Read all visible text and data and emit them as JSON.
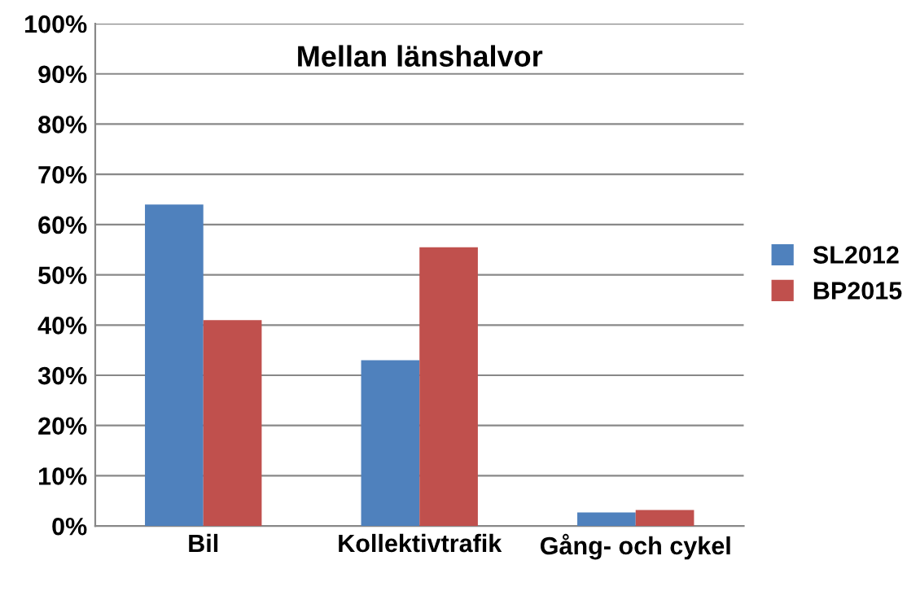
{
  "chart_data": {
    "type": "bar",
    "title": "Mellan länshalvor",
    "categories": [
      "Bil",
      "Kollektivtrafik",
      "Gång- och cykel"
    ],
    "series": [
      {
        "name": "SL2012",
        "color": "#4f81bd",
        "values": [
          0.64,
          0.33,
          0.027
        ]
      },
      {
        "name": "BP2015",
        "color": "#c0504d",
        "values": [
          0.41,
          0.555,
          0.032
        ]
      }
    ],
    "ylim": [
      0,
      1
    ],
    "yticks": [
      {
        "value": 0,
        "label": "0%"
      },
      {
        "value": 0.1,
        "label": "10%"
      },
      {
        "value": 0.2,
        "label": "20%"
      },
      {
        "value": 0.3,
        "label": "30%"
      },
      {
        "value": 0.4,
        "label": "40%"
      },
      {
        "value": 0.5,
        "label": "50%"
      },
      {
        "value": 0.6,
        "label": "60%"
      },
      {
        "value": 0.7,
        "label": "70%"
      },
      {
        "value": 0.8,
        "label": "80%"
      },
      {
        "value": 0.9,
        "label": "90%"
      },
      {
        "value": 1,
        "label": "100%"
      }
    ],
    "grid": "y",
    "legend": "right"
  }
}
